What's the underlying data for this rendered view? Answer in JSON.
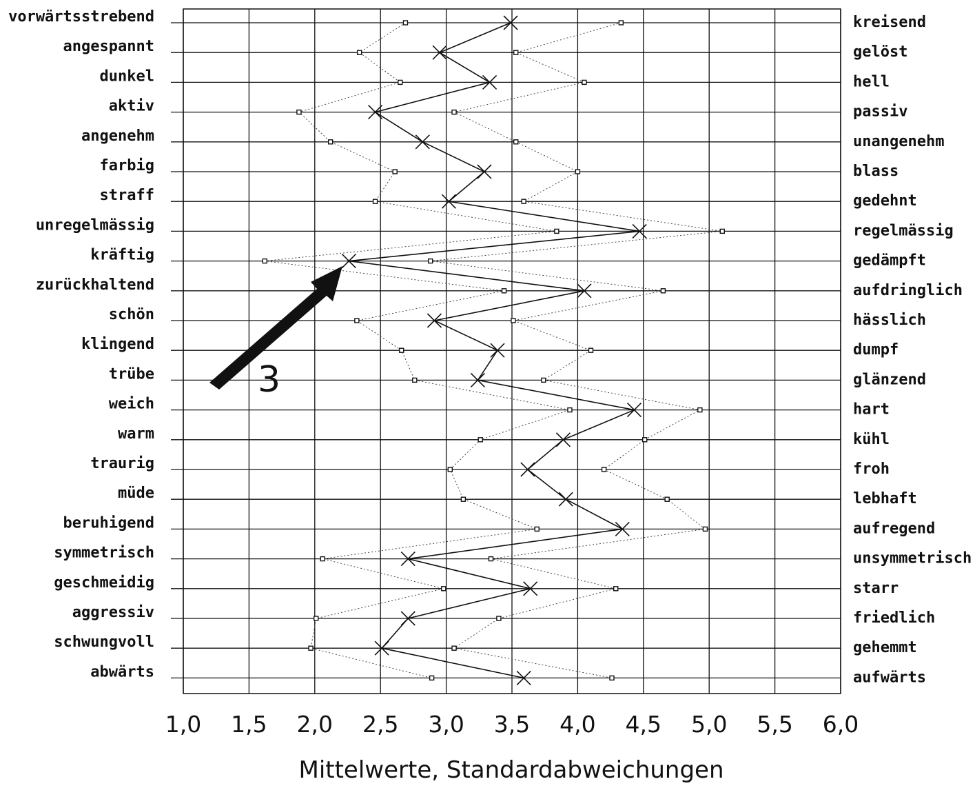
{
  "chart_data": {
    "type": "line",
    "title": "",
    "xlabel": "Mittelwerte, Standardabweichungen",
    "ylabel": "",
    "xlim": [
      1.0,
      6.0
    ],
    "x_ticks": [
      "1,0",
      "1,5",
      "2,0",
      "2,5",
      "3,0",
      "3,5",
      "4,0",
      "4,5",
      "5,0",
      "5,5",
      "6,0"
    ],
    "grid": true,
    "left_labels": [
      "vorwärtsstrebend",
      "angespannt",
      "dunkel",
      "aktiv",
      "angenehm",
      "farbig",
      "straff",
      "unregelmässig",
      "kräftig",
      "zurückhaltend",
      "schön",
      "klingend",
      "trübe",
      "weich",
      "warm",
      "traurig",
      "müde",
      "beruhigend",
      "symmetrisch",
      "geschmeidig",
      "aggressiv",
      "schwungvoll",
      "abwärts"
    ],
    "right_labels": [
      "kreisend",
      "gelöst",
      "hell",
      "passiv",
      "unangenehm",
      "blass",
      "gedehnt",
      "regelmässig",
      "gedämpft",
      "aufdringlich",
      "hässlich",
      "dumpf",
      "glänzend",
      "hart",
      "kühl",
      "froh",
      "lebhaft",
      "aufregend",
      "unsymmetrisch",
      "starr",
      "friedlich",
      "gehemmt",
      "aufwärts"
    ],
    "series": [
      {
        "role": "mean",
        "marker": "x",
        "values": [
          3.49,
          2.95,
          3.33,
          2.46,
          2.82,
          3.29,
          3.02,
          4.47,
          2.26,
          4.05,
          2.91,
          3.39,
          3.24,
          4.43,
          3.89,
          3.62,
          3.91,
          4.34,
          2.71,
          3.64,
          2.71,
          2.51,
          3.59
        ]
      },
      {
        "role": "mean - sd",
        "marker": "square",
        "values": [
          2.69,
          2.34,
          2.65,
          1.88,
          2.12,
          2.61,
          2.46,
          3.84,
          1.62,
          3.44,
          2.32,
          2.66,
          2.76,
          3.94,
          3.26,
          3.03,
          3.13,
          3.69,
          2.06,
          2.98,
          2.01,
          1.97,
          2.89
        ]
      },
      {
        "role": "mean + sd",
        "marker": "square",
        "values": [
          4.33,
          3.53,
          4.05,
          3.06,
          3.53,
          4.0,
          3.59,
          5.1,
          2.88,
          4.65,
          3.51,
          4.1,
          3.74,
          4.93,
          4.51,
          4.2,
          4.68,
          4.97,
          3.34,
          4.29,
          3.4,
          3.06,
          4.26
        ]
      }
    ],
    "annotation": {
      "text": "3",
      "points_to_row": "kräftig"
    }
  }
}
